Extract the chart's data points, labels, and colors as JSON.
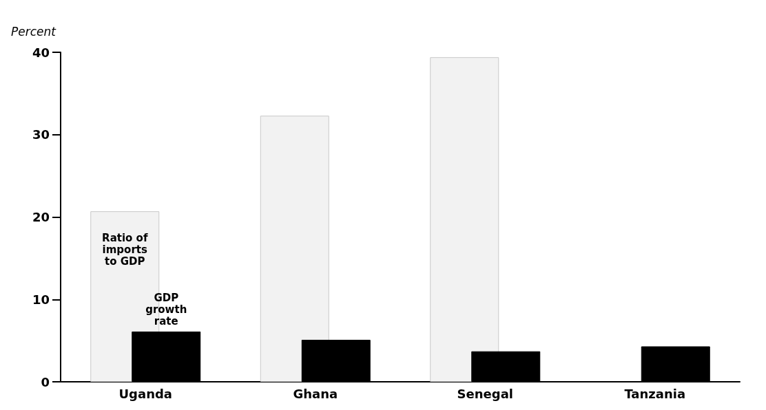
{
  "chart_data": {
    "type": "bar",
    "ylabel": "Percent",
    "categories": [
      "Uganda",
      "Ghana",
      "Senegal",
      "Tanzania"
    ],
    "series": [
      {
        "name": "Ratio of imports to GDP",
        "color": "#f2f2f2",
        "values": [
          20.7,
          32.3,
          39.4,
          null
        ]
      },
      {
        "name": "GDP growth rate",
        "color": "#000000",
        "values": [
          6.1,
          5.1,
          3.7,
          4.3
        ]
      }
    ],
    "ylim": [
      0,
      40
    ],
    "yticks": [
      0,
      10,
      20,
      30,
      40
    ],
    "grid": false,
    "legend": false
  }
}
